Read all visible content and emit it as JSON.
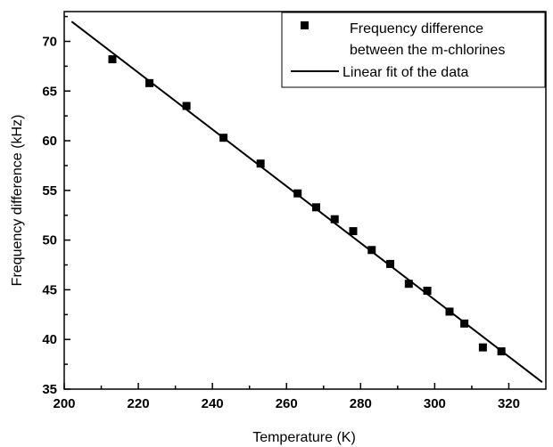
{
  "chart_data": {
    "type": "scatter",
    "title": "",
    "xlabel": "Temperature (K)",
    "ylabel": "Frequency difference (kHz)",
    "xlim": [
      200,
      330
    ],
    "ylim": [
      35,
      73
    ],
    "x_ticks": [
      "200",
      "220",
      "240",
      "260",
      "280",
      "300",
      "320"
    ],
    "y_ticks": [
      "35",
      "40",
      "45",
      "50",
      "55",
      "60",
      "65",
      "70"
    ],
    "grid": false,
    "legend_position": "top-right",
    "series": [
      {
        "name": "Frequency difference between the m-chlorines",
        "legend_lines": [
          "Frequency difference",
          "between the m-chlorines"
        ],
        "marker": "square",
        "color": "#000000",
        "x": [
          213,
          223,
          233,
          243,
          253,
          263,
          268,
          273,
          278,
          283,
          288,
          293,
          298,
          304,
          308,
          313,
          318
        ],
        "y": [
          68.2,
          65.8,
          63.5,
          60.3,
          57.7,
          54.7,
          53.3,
          52.1,
          50.9,
          49.0,
          47.6,
          45.6,
          44.9,
          42.8,
          41.6,
          39.2,
          38.8
        ]
      },
      {
        "name": "Linear fit of the data",
        "type": "line",
        "color": "#000000",
        "x": [
          202,
          329
        ],
        "y": [
          72.0,
          35.7
        ]
      }
    ]
  }
}
